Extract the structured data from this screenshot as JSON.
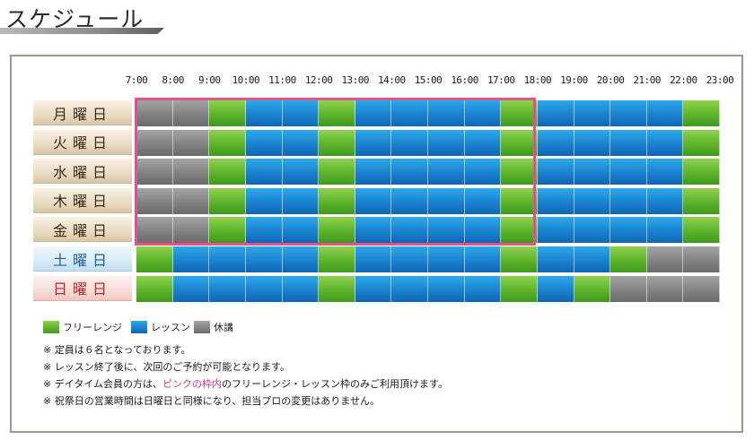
{
  "title": "スケジュール",
  "times": [
    "7:00",
    "8:00",
    "9:00",
    "10:00",
    "11:00",
    "12:00",
    "13:00",
    "14:00",
    "15:00",
    "16:00",
    "17:00",
    "18:00",
    "19:00",
    "20:00",
    "21:00",
    "22:00",
    "23:00"
  ],
  "days": [
    {
      "label": "月曜日",
      "type": "weekday",
      "slots": [
        "k",
        "k",
        "g",
        "b",
        "b",
        "g",
        "b",
        "b",
        "b",
        "b",
        "g",
        "b",
        "b",
        "b",
        "b",
        "g"
      ]
    },
    {
      "label": "火曜日",
      "type": "weekday",
      "slots": [
        "k",
        "k",
        "g",
        "b",
        "b",
        "g",
        "b",
        "b",
        "b",
        "b",
        "g",
        "b",
        "b",
        "b",
        "b",
        "g"
      ]
    },
    {
      "label": "水曜日",
      "type": "weekday",
      "slots": [
        "k",
        "k",
        "g",
        "b",
        "b",
        "g",
        "b",
        "b",
        "b",
        "b",
        "g",
        "b",
        "b",
        "b",
        "b",
        "g"
      ]
    },
    {
      "label": "木曜日",
      "type": "weekday",
      "slots": [
        "k",
        "k",
        "g",
        "b",
        "b",
        "g",
        "b",
        "b",
        "b",
        "b",
        "g",
        "b",
        "b",
        "b",
        "b",
        "g"
      ]
    },
    {
      "label": "金曜日",
      "type": "weekday",
      "slots": [
        "k",
        "k",
        "g",
        "b",
        "b",
        "g",
        "b",
        "b",
        "b",
        "b",
        "g",
        "b",
        "b",
        "b",
        "b",
        "g"
      ]
    },
    {
      "label": "土曜日",
      "type": "sat",
      "slots": [
        "g",
        "b",
        "b",
        "b",
        "b",
        "g",
        "b",
        "b",
        "b",
        "b",
        "g",
        "b",
        "b",
        "g",
        "k",
        "k"
      ]
    },
    {
      "label": "日曜日",
      "type": "sun",
      "slots": [
        "g",
        "b",
        "b",
        "b",
        "b",
        "g",
        "b",
        "b",
        "b",
        "b",
        "g",
        "b",
        "g",
        "k",
        "k",
        "k"
      ]
    }
  ],
  "legend": {
    "free_range": "フリーレンジ",
    "lesson": "レッスン",
    "closed": "休講"
  },
  "colors": {
    "free_range": "#5db32b",
    "lesson": "#1a82cf",
    "closed": "#828282",
    "highlight": "#e6508a"
  },
  "notes": {
    "n1": "※ 定員は６名となっております。",
    "n2": "※ レッスン終了後に、次回のご予約が可能となります。",
    "n3_pre": "※ デイタイム会員の方は、",
    "n3_pink": "ピンクの枠内",
    "n3_post": "のフリーレンジ・レッスン枠のみご利用頂けます。",
    "n4": "※ 祝祭日の営業時間は日曜日と同様になり、担当プロの変更はありません。"
  }
}
